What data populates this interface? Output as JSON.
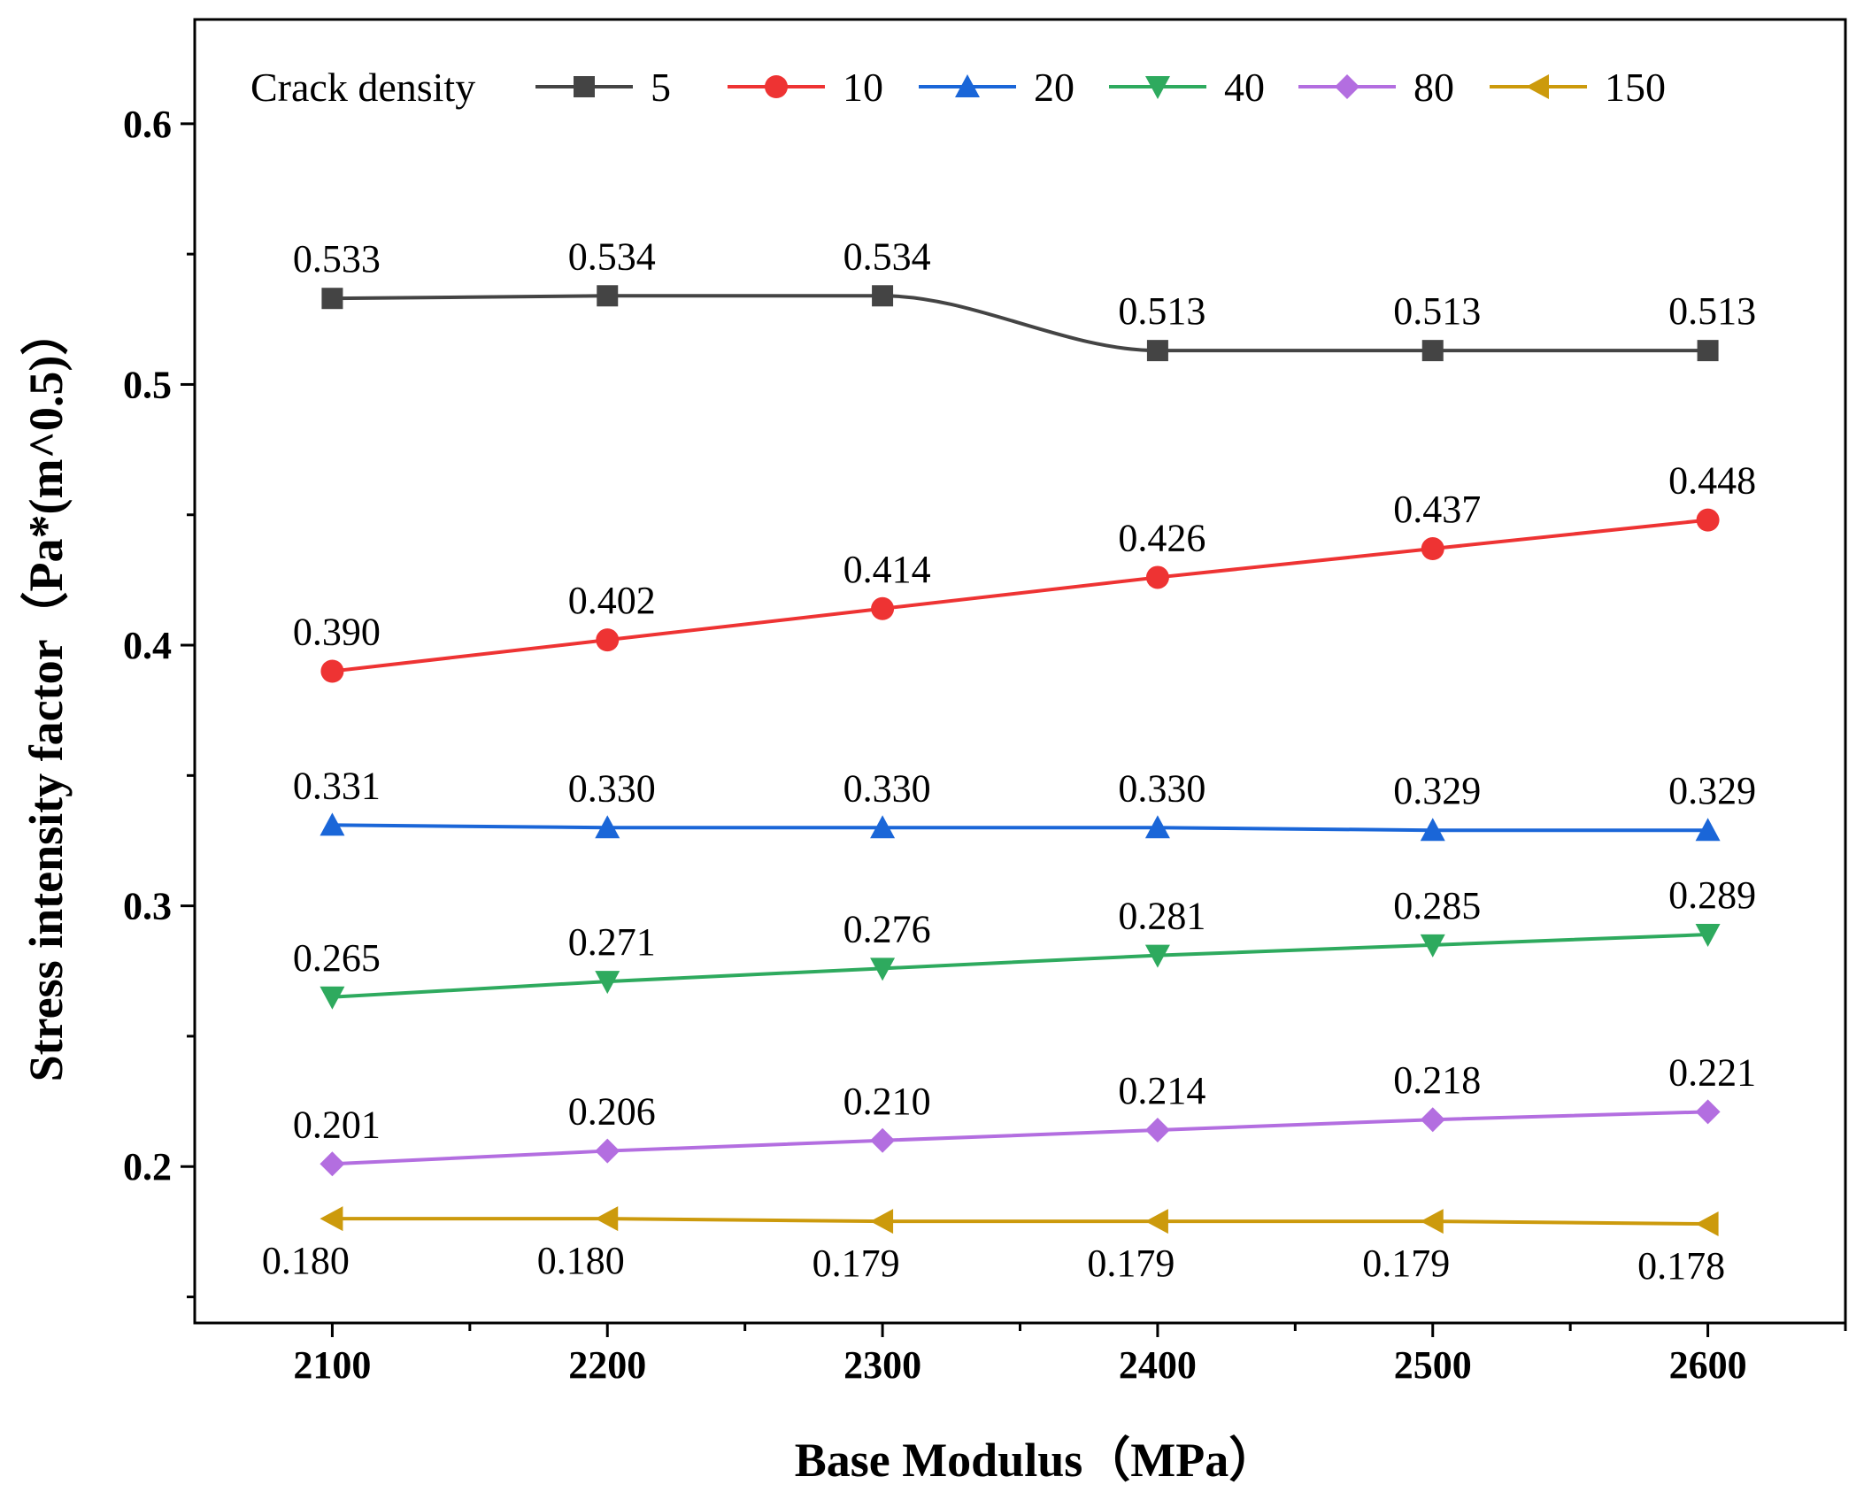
{
  "chart_data": {
    "type": "line",
    "title": "",
    "xlabel": "Base Modulus（MPa）",
    "ylabel": "Stress intensity factor（Pa*(m^0.5)）",
    "x": [
      2100,
      2200,
      2300,
      2400,
      2500,
      2600
    ],
    "x_tick_labels": [
      "2100",
      "2200",
      "2300",
      "2400",
      "2500",
      "2600"
    ],
    "y_ticks": [
      0.2,
      0.3,
      0.4,
      0.5,
      0.6
    ],
    "y_tick_labels": [
      "0.2",
      "0.3",
      "0.4",
      "0.5",
      "0.6"
    ],
    "xlim": [
      2050,
      2650
    ],
    "ylim": [
      0.14,
      0.64
    ],
    "legend_title": "Crack density",
    "legend_position": "top",
    "series": [
      {
        "name": "5",
        "color": "#444444",
        "marker": "square",
        "smooth": true,
        "values": [
          0.533,
          0.534,
          0.534,
          0.513,
          0.513,
          0.513
        ],
        "labels": [
          "0.533",
          "0.534",
          "0.534",
          "0.513",
          "0.513",
          "0.513"
        ],
        "label_pos": "above"
      },
      {
        "name": "10",
        "color": "#ee3333",
        "marker": "circle",
        "values": [
          0.39,
          0.402,
          0.414,
          0.426,
          0.437,
          0.448
        ],
        "labels": [
          "0.390",
          "0.402",
          "0.414",
          "0.426",
          "0.437",
          "0.448"
        ],
        "label_pos": "above"
      },
      {
        "name": "20",
        "color": "#1a66d8",
        "marker": "triangle-up",
        "values": [
          0.331,
          0.33,
          0.33,
          0.33,
          0.329,
          0.329
        ],
        "labels": [
          "0.331",
          "0.330",
          "0.330",
          "0.330",
          "0.329",
          "0.329"
        ],
        "label_pos": "above"
      },
      {
        "name": "40",
        "color": "#2eaa5e",
        "marker": "triangle-down",
        "values": [
          0.265,
          0.271,
          0.276,
          0.281,
          0.285,
          0.289
        ],
        "labels": [
          "0.265",
          "0.271",
          "0.276",
          "0.281",
          "0.285",
          "0.289"
        ],
        "label_pos": "above"
      },
      {
        "name": "80",
        "color": "#b36ee0",
        "marker": "diamond",
        "values": [
          0.201,
          0.206,
          0.21,
          0.214,
          0.218,
          0.221
        ],
        "labels": [
          "0.201",
          "0.206",
          "0.210",
          "0.214",
          "0.218",
          "0.221"
        ],
        "label_pos": "above"
      },
      {
        "name": "150",
        "color": "#cc9a0c",
        "marker": "triangle-left",
        "values": [
          0.18,
          0.18,
          0.179,
          0.179,
          0.179,
          0.178
        ],
        "labels": [
          "0.180",
          "0.180",
          "0.179",
          "0.179",
          "0.179",
          "0.178"
        ],
        "label_pos": "below"
      }
    ]
  }
}
